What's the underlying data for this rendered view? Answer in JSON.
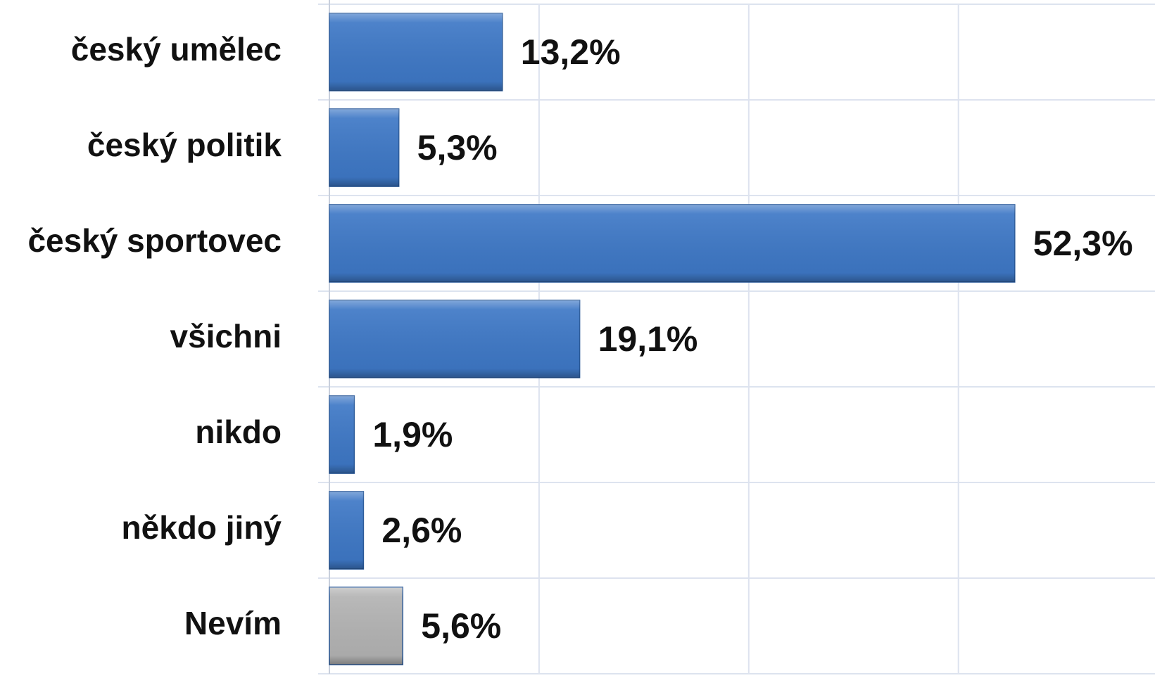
{
  "chart_data": {
    "type": "barh",
    "categories": [
      "český umělec",
      "český politik",
      "český sportovec",
      "všichni",
      "nikdo",
      "někdo jiný",
      "Nevím"
    ],
    "values": [
      13.2,
      5.3,
      52.3,
      19.1,
      1.9,
      2.6,
      5.6
    ],
    "value_labels": [
      "13,2%",
      "5,3%",
      "52,3%",
      "19,1%",
      "1,9%",
      "2,6%",
      "5,6%"
    ],
    "colors": [
      "#3e78c6",
      "#3e78c6",
      "#3e78c6",
      "#3e78c6",
      "#3e78c6",
      "#3e78c6",
      "#b3b3b3"
    ],
    "xlim": [
      0,
      63
    ],
    "xticks": [
      0,
      16,
      32,
      48
    ],
    "grid": true
  }
}
